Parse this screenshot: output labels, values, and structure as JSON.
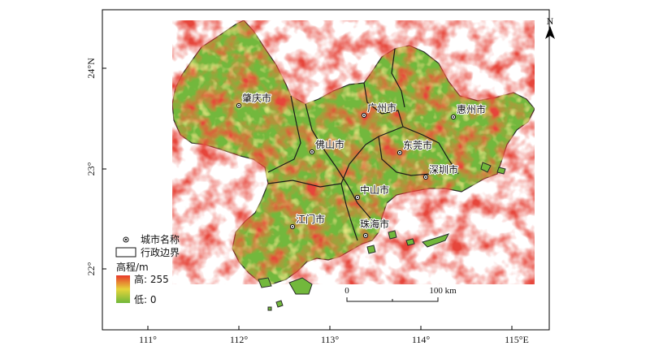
{
  "north_arrow": {
    "label": "N"
  },
  "axes": {
    "x_ticks": [
      "111°",
      "112°",
      "113°",
      "114°",
      "115°E"
    ],
    "y_ticks": [
      "24°N",
      "23°",
      "22°"
    ]
  },
  "cities": [
    {
      "key": "zhaoqing",
      "name": "肇庆市"
    },
    {
      "key": "guangzhou",
      "name": "广州市"
    },
    {
      "key": "huizhou",
      "name": "惠州市"
    },
    {
      "key": "foshan",
      "name": "佛山市"
    },
    {
      "key": "dongguan",
      "name": "东莞市"
    },
    {
      "key": "shenzhen",
      "name": "深圳市"
    },
    {
      "key": "zhongshan",
      "name": "中山市"
    },
    {
      "key": "jiangmen",
      "name": "江门市"
    },
    {
      "key": "zhuhai",
      "name": "珠海市"
    }
  ],
  "legend": {
    "city_label": "城市名称",
    "boundary_label": "行政边界",
    "elevation_title": "高程/m",
    "high_label": "高: 255",
    "low_label": "低: 0",
    "colors": {
      "high": "#e8392a",
      "mid": "#e6d43a",
      "low": "#6fb83a"
    }
  },
  "scale_bar": {
    "start": "0",
    "end": "100 km"
  }
}
